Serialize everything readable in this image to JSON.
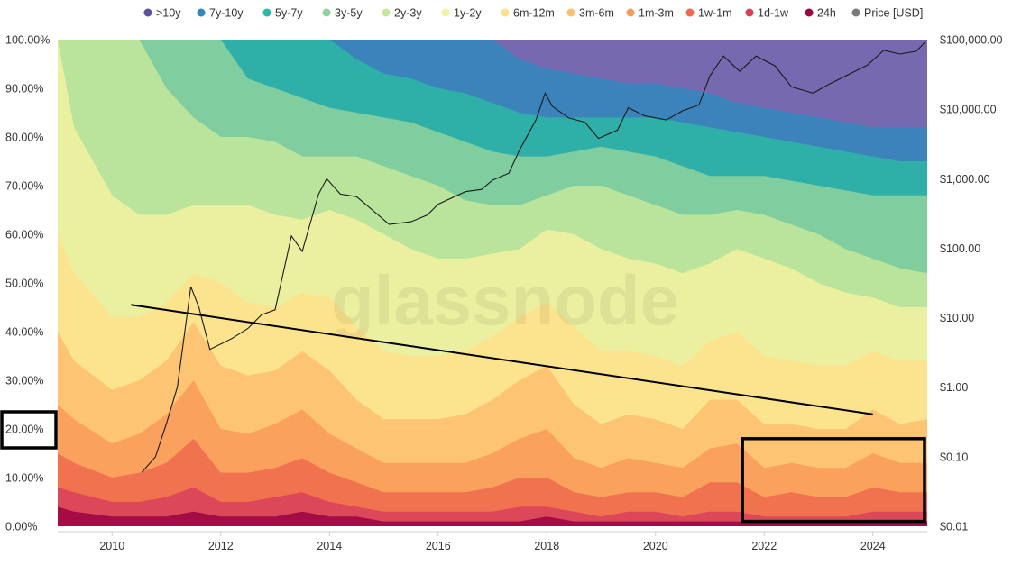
{
  "chart_data": {
    "type": "area",
    "stacked": true,
    "normalized": true,
    "title": "",
    "watermark": "glassnode",
    "legend_position": "top-center",
    "legend": [
      {
        "label": ">10y",
        "color": "#5e4fa2"
      },
      {
        "label": "7y-10y",
        "color": "#3288bd"
      },
      {
        "label": "5y-7y",
        "color": "#2bb8a6"
      },
      {
        "label": "3y-5y",
        "color": "#8ed39f"
      },
      {
        "label": "2y-3y",
        "color": "#c4e89a"
      },
      {
        "label": "1y-2y",
        "color": "#f2f2a0"
      },
      {
        "label": "6m-12m",
        "color": "#ffe08a"
      },
      {
        "label": "3m-6m",
        "color": "#fdbf6f"
      },
      {
        "label": "1m-3m",
        "color": "#f99a5a"
      },
      {
        "label": "1w-1m",
        "color": "#ef6a4c"
      },
      {
        "label": "1d-1w",
        "color": "#d8405a"
      },
      {
        "label": "24h",
        "color": "#9e0142"
      },
      {
        "label": "Price [USD]",
        "color": "#7a7a7a"
      }
    ],
    "x_axis": {
      "ticks": [
        "2010",
        "2012",
        "2014",
        "2016",
        "2018",
        "2020",
        "2022",
        "2024"
      ],
      "range": [
        2009.0,
        2025.0
      ]
    },
    "y_left": {
      "ticks": [
        "0.00%",
        "10.00%",
        "20.00%",
        "30.00%",
        "40.00%",
        "50.00%",
        "60.00%",
        "70.00%",
        "80.00%",
        "90.00%",
        "100.00%"
      ],
      "range": [
        0,
        100
      ]
    },
    "y_right": {
      "scale": "log",
      "ticks": [
        "$0.01",
        "$0.10",
        "$1.00",
        "$10.00",
        "$100.00",
        "$1,000.00",
        "$10,000.00",
        "$100,000.00"
      ],
      "range": [
        0.01,
        100000
      ]
    },
    "bands_order": [
      "24h",
      "1d-1w",
      "1w-1m",
      "1m-3m",
      "3m-6m",
      "6m-12m",
      "1y-2y",
      "2y-3y",
      "3y-5y",
      "5y-7y",
      "7y-10y",
      ">10y"
    ],
    "cumulative_tops": {
      "x": [
        2009.0,
        2009.3,
        2010.0,
        2010.5,
        2011.0,
        2011.5,
        2012.0,
        2012.5,
        2013.0,
        2013.5,
        2014.0,
        2014.5,
        2015.0,
        2015.5,
        2016.0,
        2016.5,
        2017.0,
        2017.5,
        2018.0,
        2018.5,
        2019.0,
        2019.5,
        2020.0,
        2020.5,
        2021.0,
        2021.5,
        2022.0,
        2022.5,
        2023.0,
        2023.5,
        2024.0,
        2024.5,
        2025.0
      ],
      "24h": [
        4,
        3,
        2,
        2,
        2,
        3,
        2,
        2,
        2,
        3,
        2,
        2,
        1,
        1,
        1,
        1,
        1,
        1,
        2,
        1,
        1,
        1,
        1,
        1,
        1,
        1,
        1,
        1,
        1,
        1,
        1,
        1,
        1
      ],
      "1d-1w": [
        8,
        7,
        5,
        5,
        6,
        8,
        5,
        5,
        6,
        7,
        5,
        4,
        3,
        3,
        3,
        3,
        3,
        4,
        4,
        3,
        2,
        3,
        3,
        2,
        3,
        3,
        2,
        2,
        2,
        2,
        3,
        3,
        3
      ],
      "1w-1m": [
        15,
        13,
        10,
        11,
        13,
        18,
        11,
        11,
        12,
        14,
        11,
        9,
        7,
        7,
        7,
        7,
        8,
        10,
        10,
        7,
        6,
        7,
        7,
        6,
        9,
        9,
        6,
        7,
        6,
        6,
        8,
        7,
        7
      ],
      "1m-3m": [
        25,
        22,
        17,
        19,
        23,
        30,
        20,
        19,
        21,
        24,
        19,
        16,
        13,
        13,
        13,
        13,
        15,
        18,
        20,
        14,
        12,
        14,
        13,
        12,
        16,
        17,
        12,
        13,
        12,
        12,
        15,
        13,
        13
      ],
      "3m-6m": [
        40,
        34,
        28,
        30,
        34,
        42,
        33,
        31,
        32,
        36,
        32,
        26,
        22,
        22,
        22,
        23,
        26,
        30,
        33,
        25,
        21,
        23,
        22,
        20,
        26,
        26,
        21,
        21,
        20,
        20,
        24,
        21,
        22
      ],
      "6m-12m": [
        60,
        52,
        43,
        43,
        46,
        52,
        50,
        46,
        45,
        48,
        47,
        41,
        36,
        35,
        35,
        36,
        39,
        43,
        46,
        41,
        36,
        36,
        35,
        33,
        38,
        40,
        35,
        34,
        33,
        33,
        36,
        34,
        34
      ],
      "1y-2y": [
        100,
        82,
        68,
        64,
        64,
        66,
        66,
        66,
        64,
        63,
        65,
        63,
        60,
        57,
        55,
        55,
        56,
        57,
        61,
        60,
        57,
        55,
        54,
        52,
        54,
        57,
        55,
        53,
        50,
        48,
        47,
        45,
        45
      ],
      "2y-3y": [
        100,
        100,
        100,
        100,
        90,
        84,
        80,
        80,
        79,
        76,
        76,
        76,
        74,
        72,
        70,
        67,
        66,
        66,
        68,
        70,
        70,
        68,
        66,
        64,
        64,
        65,
        64,
        62,
        60,
        57,
        55,
        53,
        52
      ],
      "3y-5y": [
        100,
        100,
        100,
        100,
        100,
        100,
        100,
        92,
        90,
        88,
        86,
        85,
        84,
        83,
        81,
        79,
        77,
        76,
        76,
        77,
        78,
        77,
        76,
        74,
        72,
        72,
        72,
        71,
        70,
        69,
        68,
        68,
        68
      ],
      "5y-7y": [
        100,
        100,
        100,
        100,
        100,
        100,
        100,
        100,
        100,
        100,
        100,
        96,
        93,
        92,
        90,
        89,
        87,
        85,
        84,
        84,
        84,
        84,
        84,
        83,
        82,
        81,
        80,
        79,
        78,
        77,
        76,
        75,
        75
      ],
      "7y-10y": [
        100,
        100,
        100,
        100,
        100,
        100,
        100,
        100,
        100,
        100,
        100,
        100,
        100,
        100,
        100,
        100,
        100,
        96,
        94,
        93,
        92,
        91,
        91,
        90,
        89,
        87,
        86,
        85,
        84,
        83,
        82,
        82,
        82
      ],
      ">10y": [
        100,
        100,
        100,
        100,
        100,
        100,
        100,
        100,
        100,
        100,
        100,
        100,
        100,
        100,
        100,
        100,
        100,
        100,
        100,
        100,
        100,
        100,
        100,
        100,
        100,
        100,
        100,
        100,
        100,
        100,
        100,
        100,
        100
      ]
    },
    "price_series": {
      "name": "Price [USD]",
      "x": [
        2010.55,
        2010.8,
        2011.0,
        2011.2,
        2011.45,
        2011.6,
        2011.8,
        2011.95,
        2012.2,
        2012.5,
        2012.75,
        2013.0,
        2013.3,
        2013.5,
        2013.8,
        2013.95,
        2014.2,
        2014.5,
        2014.8,
        2015.1,
        2015.5,
        2015.8,
        2016.0,
        2016.5,
        2016.8,
        2017.0,
        2017.3,
        2017.5,
        2017.8,
        2017.97,
        2018.1,
        2018.4,
        2018.7,
        2018.95,
        2019.3,
        2019.5,
        2019.8,
        2020.2,
        2020.5,
        2020.8,
        2021.0,
        2021.25,
        2021.55,
        2021.85,
        2022.2,
        2022.5,
        2022.9,
        2023.2,
        2023.5,
        2023.9,
        2024.2,
        2024.5,
        2024.8,
        2024.97
      ],
      "price": [
        0.06,
        0.1,
        0.3,
        1.0,
        28,
        14,
        3.5,
        4,
        5,
        7,
        11,
        13,
        150,
        90,
        600,
        1000,
        600,
        550,
        350,
        220,
        240,
        300,
        430,
        650,
        700,
        950,
        1200,
        2600,
        7000,
        17000,
        11000,
        7500,
        6500,
        3800,
        5000,
        10500,
        8000,
        7000,
        9500,
        11500,
        30000,
        58000,
        35000,
        58000,
        42000,
        21000,
        17000,
        23000,
        30000,
        43000,
        70000,
        62000,
        68000,
        94000
      ]
    },
    "annotations": [
      {
        "type": "trend-line",
        "from": {
          "x": 2010.35,
          "y": 45.5
        },
        "to": {
          "x": 2024.0,
          "y": 23.0
        }
      },
      {
        "type": "highlight-box",
        "label": "20.00%"
      },
      {
        "type": "highlight-box",
        "x_range": [
          2021.6,
          2024.95
        ],
        "y_range": [
          1,
          18
        ]
      }
    ]
  }
}
